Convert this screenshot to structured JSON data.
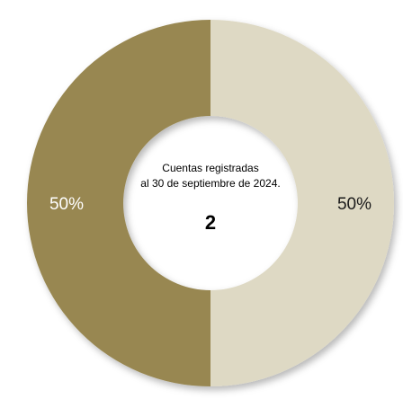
{
  "chart_data": {
    "type": "pie",
    "donut": true,
    "categories": [
      "",
      ""
    ],
    "values": [
      50,
      50
    ],
    "value_labels": [
      "50%",
      "50%"
    ],
    "colors": [
      "#ded9c4",
      "#988751"
    ],
    "label_colors": [
      "#1a1a1a",
      "#ffffff"
    ],
    "center_text": {
      "caption_line1": "Cuentas registradas",
      "caption_line2": "al 30 de septiembre de 2024.",
      "total": "2"
    }
  }
}
